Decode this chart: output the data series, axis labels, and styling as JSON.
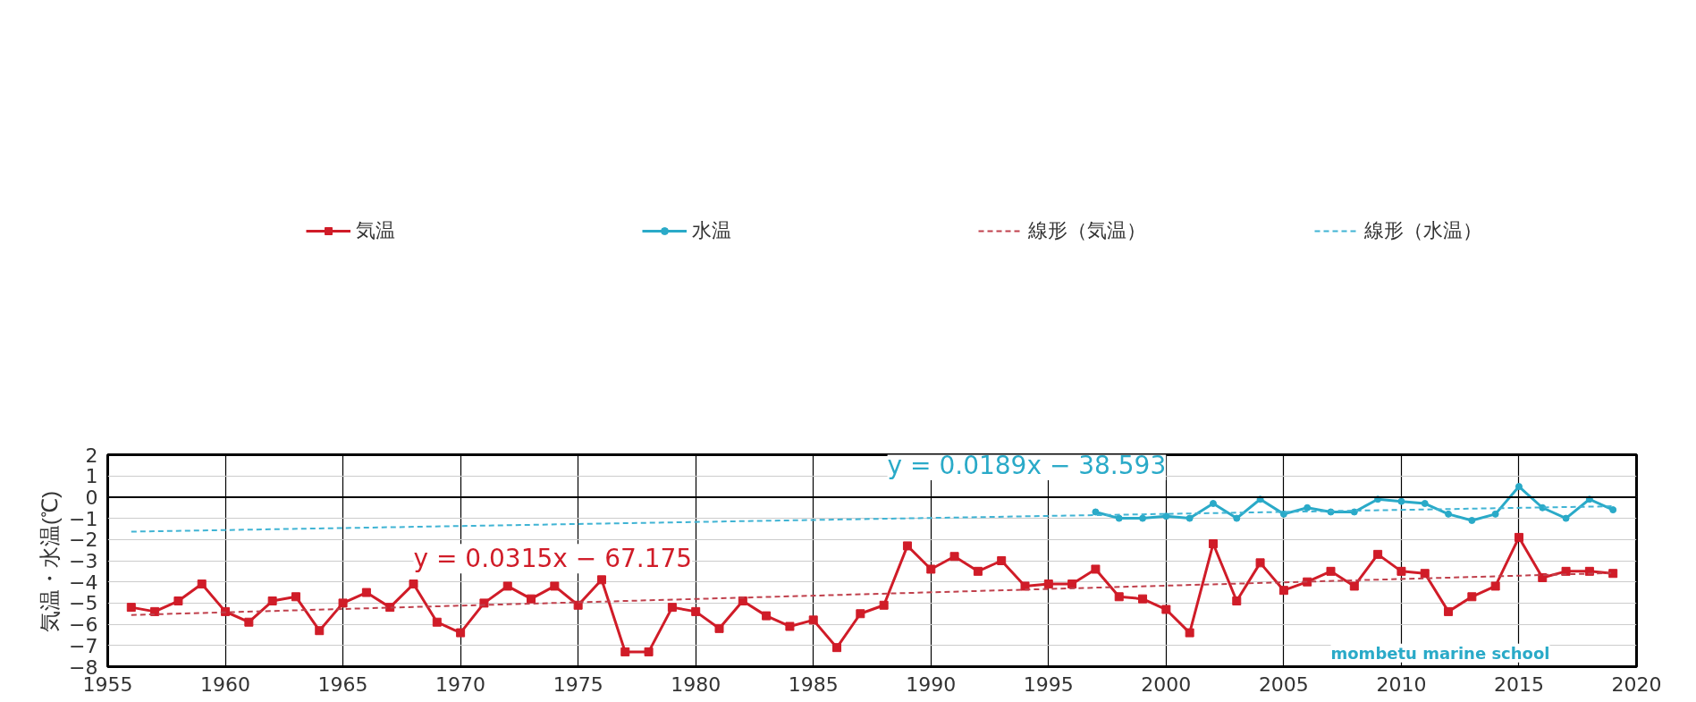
{
  "chart_data": {
    "type": "line",
    "ylabel": "気温・水温(℃)",
    "xlim": [
      1955,
      2020
    ],
    "xticks": [
      1955,
      1960,
      1965,
      1970,
      1975,
      1980,
      1985,
      1990,
      1995,
      2000,
      2005,
      2010,
      2015,
      2020
    ],
    "ylim": [
      -8,
      2
    ],
    "yticks": [
      -8,
      -7,
      -6,
      -5,
      -4,
      -3,
      -2,
      -1,
      0,
      1,
      2
    ],
    "grid": true,
    "legend": "top",
    "series": [
      {
        "name": "気温",
        "color": "#d01c28",
        "marker": "square",
        "line_style": "solid",
        "x": [
          1956,
          1957,
          1958,
          1959,
          1960,
          1961,
          1962,
          1963,
          1964,
          1965,
          1966,
          1967,
          1968,
          1969,
          1970,
          1971,
          1972,
          1973,
          1974,
          1975,
          1976,
          1977,
          1978,
          1979,
          1980,
          1981,
          1982,
          1983,
          1984,
          1985,
          1986,
          1987,
          1988,
          1989,
          1990,
          1991,
          1992,
          1993,
          1994,
          1995,
          1996,
          1997,
          1998,
          1999,
          2000,
          2001,
          2002,
          2003,
          2004,
          2005,
          2006,
          2007,
          2008,
          2009,
          2010,
          2011,
          2012,
          2013,
          2014,
          2015,
          2016,
          2017,
          2018,
          2019
        ],
        "values": [
          -5.2,
          -5.4,
          -4.9,
          -4.1,
          -5.4,
          -5.9,
          -4.9,
          -4.7,
          -6.3,
          -5.0,
          -4.5,
          -5.2,
          -4.1,
          -5.9,
          -6.4,
          -5.0,
          -4.2,
          -4.8,
          -4.2,
          -5.1,
          -3.9,
          -7.3,
          -7.3,
          -5.2,
          -5.4,
          -6.2,
          -4.9,
          -5.6,
          -6.1,
          -5.8,
          -7.1,
          -5.5,
          -5.1,
          -2.3,
          -3.4,
          -2.8,
          -3.5,
          -3.0,
          -4.2,
          -4.1,
          -4.1,
          -3.4,
          -4.7,
          -4.8,
          -5.3,
          -6.4,
          -2.2,
          -4.9,
          -3.1,
          -4.4,
          -4.0,
          -3.5,
          -4.2,
          -2.7,
          -3.5,
          -3.6,
          -5.4,
          -4.7,
          -4.2,
          -1.9,
          -3.8,
          -3.5,
          -3.5,
          -3.6
        ]
      },
      {
        "name": "水温",
        "color": "#2aaac8",
        "marker": "circle",
        "line_style": "solid",
        "x": [
          1997,
          1998,
          1999,
          2000,
          2001,
          2002,
          2003,
          2004,
          2005,
          2006,
          2007,
          2008,
          2009,
          2010,
          2011,
          2012,
          2013,
          2014,
          2015,
          2016,
          2017,
          2018,
          2019
        ],
        "values": [
          -0.7,
          -1.0,
          -1.0,
          -0.9,
          -1.0,
          -0.3,
          -1.0,
          -0.1,
          -0.8,
          -0.5,
          -0.7,
          -0.7,
          -0.1,
          -0.2,
          -0.3,
          -0.8,
          -1.1,
          -0.8,
          0.5,
          -0.5,
          -1.0,
          -0.1,
          -0.6
        ]
      },
      {
        "name": "線形（気温）",
        "color": "#c0404c",
        "marker": "none",
        "line_style": "dashed",
        "x": [
          1956,
          2019
        ],
        "values": [
          -5.56,
          -3.58
        ]
      },
      {
        "name": "線形（水温）",
        "color": "#40b4d4",
        "marker": "none",
        "line_style": "dashed",
        "x": [
          1956,
          2019
        ],
        "values": [
          -1.63,
          -0.43
        ]
      }
    ],
    "ref_lines": [
      {
        "axis": "y",
        "value": 0,
        "color": "#000000"
      }
    ],
    "annotations": [
      "y = 0.0315x − 67.175",
      "y = 0.0189x − 38.593",
      "mombetu marine school"
    ]
  }
}
